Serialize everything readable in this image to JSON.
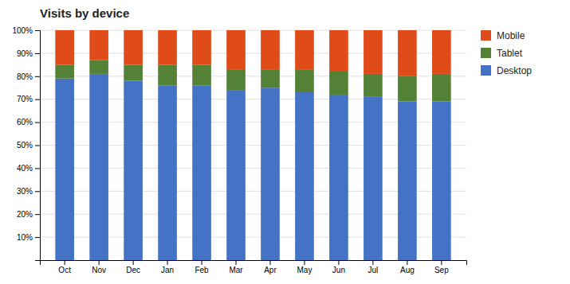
{
  "chart_data": {
    "type": "bar",
    "stacked": true,
    "title": "Visits by device",
    "categories": [
      "Oct",
      "Nov",
      "Dec",
      "Jan",
      "Feb",
      "Mar",
      "Apr",
      "May",
      "Jun",
      "Jul",
      "Aug",
      "Sep"
    ],
    "series": [
      {
        "name": "Desktop",
        "color": "#4472c4",
        "values": [
          79,
          81,
          78,
          76,
          76,
          74,
          75,
          73,
          72,
          71,
          69,
          69
        ]
      },
      {
        "name": "Tablet",
        "color": "#538135",
        "values": [
          6,
          6,
          7,
          9,
          9,
          9,
          8,
          10,
          10,
          10,
          11,
          12
        ]
      },
      {
        "name": "Mobile",
        "color": "#e04b1a",
        "values": [
          15,
          13,
          15,
          15,
          15,
          17,
          17,
          17,
          18,
          19,
          20,
          19
        ]
      }
    ],
    "ylim": [
      0,
      100
    ],
    "yticks": [
      {
        "value": 10,
        "label": "10%"
      },
      {
        "value": 20,
        "label": "20%"
      },
      {
        "value": 30,
        "label": "30%"
      },
      {
        "value": 40,
        "label": "40%"
      },
      {
        "value": 50,
        "label": "50%"
      },
      {
        "value": 60,
        "label": "60%"
      },
      {
        "value": 70,
        "label": "70%"
      },
      {
        "value": 80,
        "label": "80%"
      },
      {
        "value": 90,
        "label": "90%"
      },
      {
        "value": 100,
        "label": "100%"
      }
    ],
    "grid": true,
    "legend": "upper right"
  }
}
